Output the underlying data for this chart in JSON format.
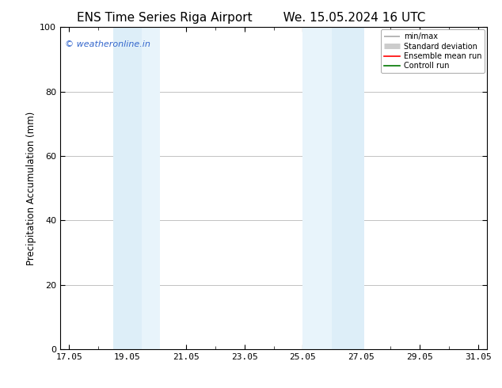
{
  "title_left": "ENS Time Series Riga Airport",
  "title_right": "We. 15.05.2024 16 UTC",
  "ylabel": "Precipitation Accumulation (mm)",
  "ylim": [
    0,
    100
  ],
  "yticks": [
    0,
    20,
    40,
    60,
    80,
    100
  ],
  "xtick_labels": [
    "17.05",
    "19.05",
    "21.05",
    "23.05",
    "25.05",
    "27.05",
    "29.05",
    "31.05"
  ],
  "xtick_positions": [
    17,
    19,
    21,
    23,
    25,
    27,
    29,
    31
  ],
  "x_min": 16.7,
  "x_max": 31.3,
  "shaded_bands": [
    {
      "x_start": 18.5,
      "x_end": 19.5,
      "color": "#ddeef8"
    },
    {
      "x_start": 19.5,
      "x_end": 20.1,
      "color": "#e8f4fb"
    },
    {
      "x_start": 25.0,
      "x_end": 26.0,
      "color": "#e8f4fb"
    },
    {
      "x_start": 26.0,
      "x_end": 27.1,
      "color": "#ddeef8"
    }
  ],
  "copyright_text": "© weatheronline.in",
  "copyright_color": "#3366cc",
  "legend_items": [
    {
      "label": "min/max",
      "color": "#aaaaaa",
      "lw": 1.2
    },
    {
      "label": "Standard deviation",
      "color": "#cccccc",
      "lw": 5
    },
    {
      "label": "Ensemble mean run",
      "color": "#ff0000",
      "lw": 1.2
    },
    {
      "label": "Controll run",
      "color": "#007700",
      "lw": 1.2
    }
  ],
  "background_color": "#ffffff",
  "plot_bg_color": "#ffffff",
  "title_fontsize": 11,
  "axis_label_fontsize": 8.5,
  "tick_fontsize": 8,
  "copyright_fontsize": 8
}
